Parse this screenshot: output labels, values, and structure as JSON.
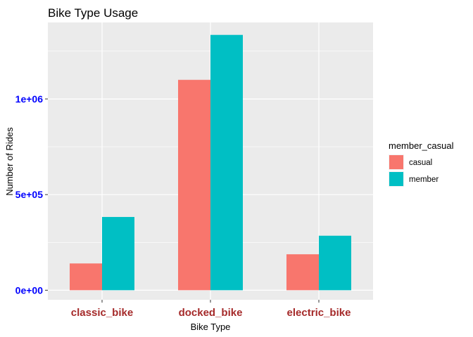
{
  "chart_data": {
    "type": "bar",
    "title": "Bike Type Usage",
    "xlabel": "Bike Type",
    "ylabel": "Number of Rides",
    "categories": [
      "classic_bike",
      "docked_bike",
      "electric_bike"
    ],
    "series": [
      {
        "name": "casual",
        "color": "#F8766D",
        "values": [
          140000,
          1100000,
          188000
        ]
      },
      {
        "name": "member",
        "color": "#00BFC4",
        "values": [
          383000,
          1335000,
          285000
        ]
      }
    ],
    "ylim": [
      -50000,
      1400000
    ],
    "yticks": [
      0,
      500000,
      1000000
    ],
    "ytick_labels": [
      "0e+00",
      "5e+05",
      "1e+06"
    ],
    "legend": {
      "title": "member_casual",
      "placement": "right"
    },
    "panel_background": "#EBEBEB",
    "grid": true
  }
}
